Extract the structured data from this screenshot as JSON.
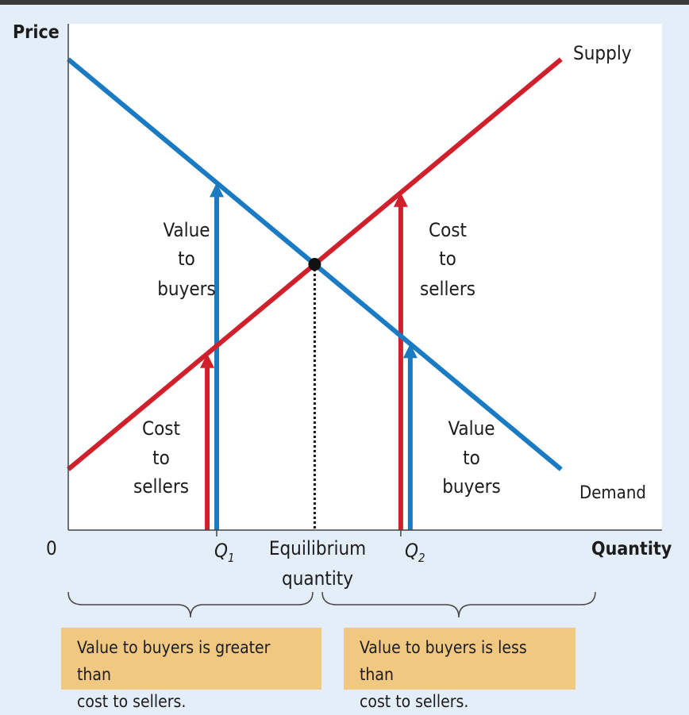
{
  "chart_data": {
    "type": "line",
    "ylabel": "Price",
    "xlabel": "Quantity",
    "origin_label": "0",
    "xlim": [
      0,
      10
    ],
    "ylim": [
      0,
      10
    ],
    "series": [
      {
        "name": "Supply",
        "color": "#d0202c",
        "points": [
          [
            0,
            1.2
          ],
          [
            8.3,
            9.3
          ]
        ]
      },
      {
        "name": "Demand",
        "color": "#1a7bc3",
        "points": [
          [
            0,
            9.3
          ],
          [
            8.3,
            1.2
          ]
        ]
      }
    ],
    "equilibrium": {
      "x": 4.15,
      "y": 5.25,
      "label_line1": "Equilibrium",
      "label_line2": "quantity"
    },
    "quantities": [
      {
        "name": "Q1",
        "letter": "Q",
        "sub": "1",
        "x": 2.5
      },
      {
        "name": "Q2",
        "letter": "Q",
        "sub": "2",
        "x": 5.6
      }
    ],
    "annotations": {
      "value_buyers_left": [
        "Value",
        "to",
        "buyers"
      ],
      "cost_sellers_left": [
        "Cost",
        "to",
        "sellers"
      ],
      "cost_sellers_right": [
        "Cost",
        "to",
        "sellers"
      ],
      "value_buyers_right": [
        "Value",
        "to",
        "buyers"
      ]
    },
    "grid": false
  },
  "boxes": {
    "left": {
      "line1": "Value to buyers is greater than",
      "line2": "cost to sellers."
    },
    "right": {
      "line1": "Value to buyers is less than",
      "line2": "cost to sellers."
    }
  },
  "colors": {
    "supply": "#d0202c",
    "demand": "#1a7bc3",
    "box": "#f1c882",
    "plot_bg": "#ffffff",
    "page_bg": "#e4eef9"
  }
}
